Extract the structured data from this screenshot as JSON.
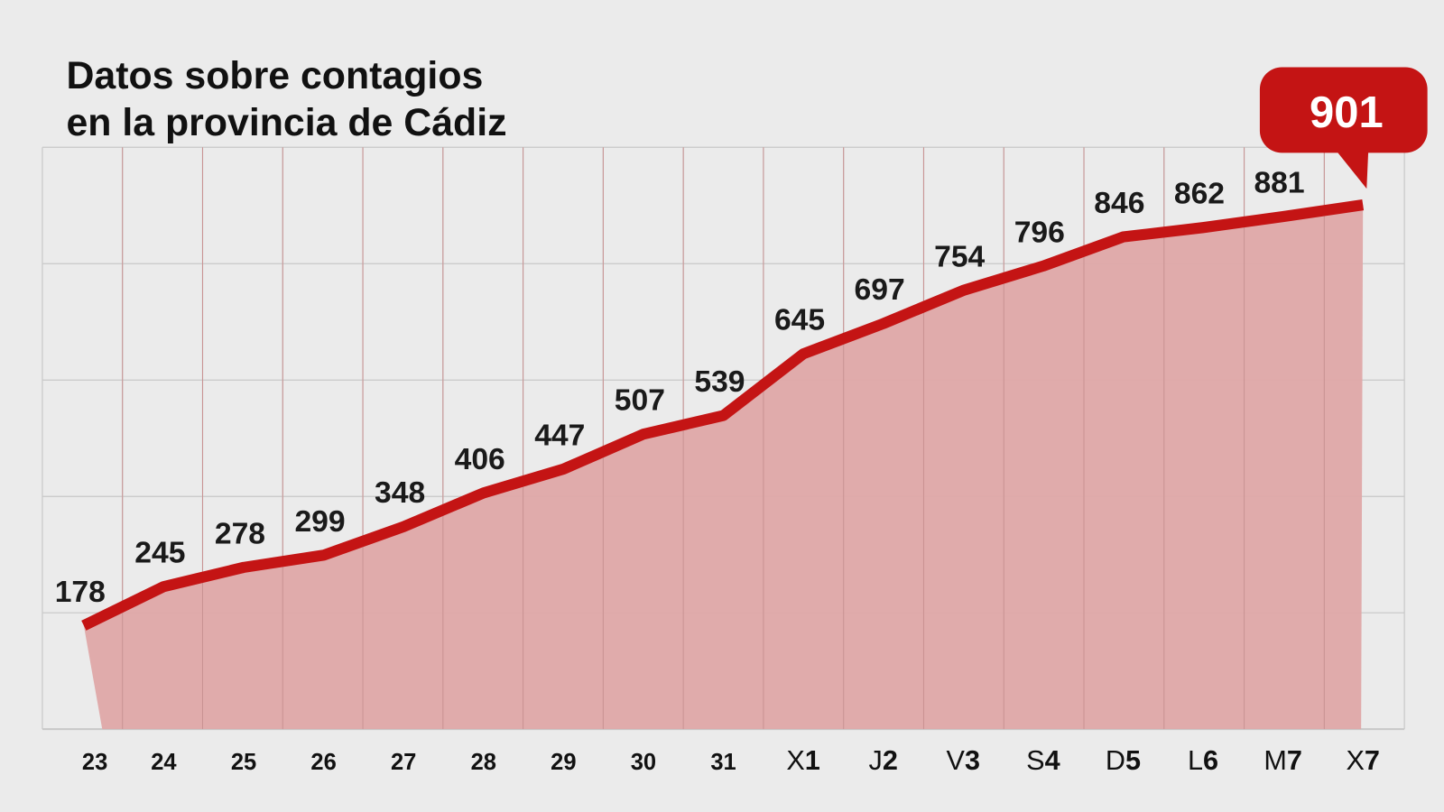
{
  "chart_data": {
    "type": "area",
    "title": [
      "Datos sobre contagios",
      "en la provincia de Cádiz"
    ],
    "categories": [
      {
        "prefix": "",
        "num": "23"
      },
      {
        "prefix": "",
        "num": "24"
      },
      {
        "prefix": "",
        "num": "25"
      },
      {
        "prefix": "",
        "num": "26"
      },
      {
        "prefix": "",
        "num": "27"
      },
      {
        "prefix": "",
        "num": "28"
      },
      {
        "prefix": "",
        "num": "29"
      },
      {
        "prefix": "",
        "num": "30"
      },
      {
        "prefix": "",
        "num": "31"
      },
      {
        "prefix": "X",
        "num": "1"
      },
      {
        "prefix": "J",
        "num": "2"
      },
      {
        "prefix": "V",
        "num": "3"
      },
      {
        "prefix": "S",
        "num": "4"
      },
      {
        "prefix": "D",
        "num": "5"
      },
      {
        "prefix": "L",
        "num": "6"
      },
      {
        "prefix": "M",
        "num": "7"
      },
      {
        "prefix": "X",
        "num": "7"
      }
    ],
    "values": [
      178,
      245,
      278,
      299,
      348,
      406,
      447,
      507,
      539,
      645,
      697,
      754,
      796,
      846,
      862,
      881,
      901
    ],
    "highlight": {
      "label": "901"
    },
    "ylim": [
      0,
      1000
    ],
    "ygrid_step": 200,
    "grid": true,
    "colors": {
      "line": "#c41414",
      "fill": "#dfa8a8",
      "callout": "#c41414",
      "grid": "#c8c8c8",
      "background": "#ebebeb"
    }
  }
}
